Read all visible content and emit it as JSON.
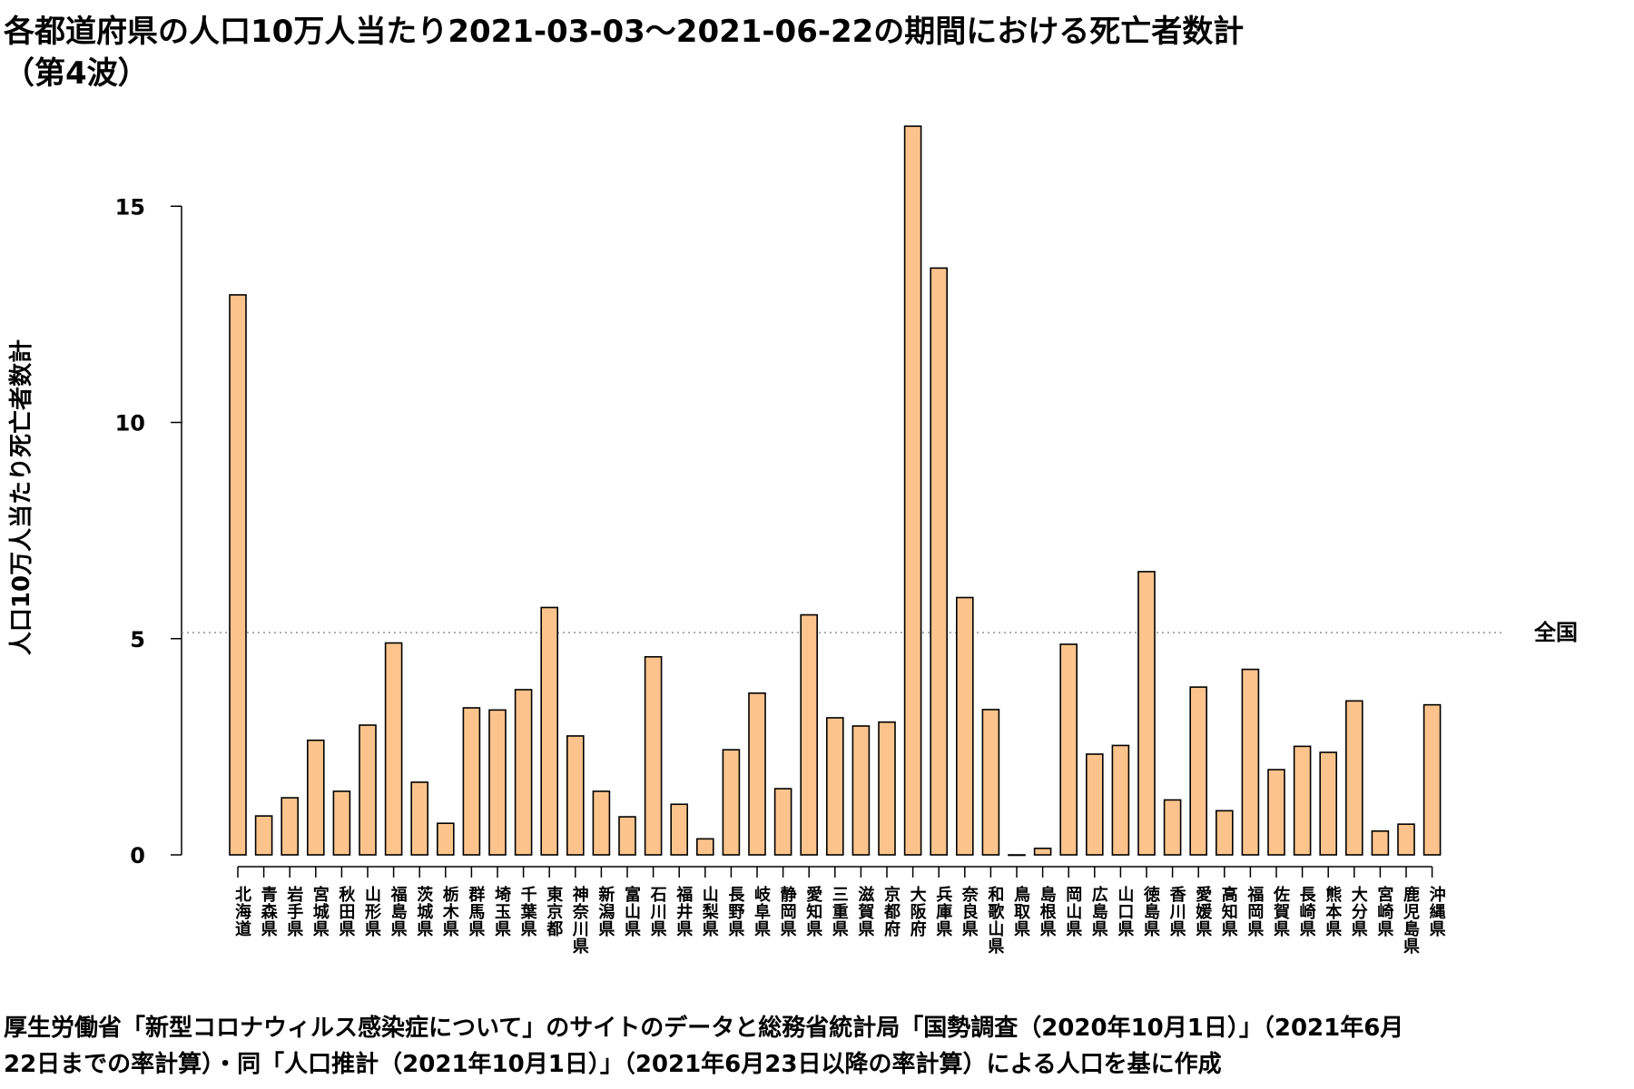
{
  "chart_data": {
    "type": "bar",
    "title": "各都道府県の人口10万人当たり2021-03-03～2021-06-22の期間における死亡者数計",
    "subtitle": "（第4波）",
    "xlabel": "",
    "ylabel": "人口10万人当たり死亡者数計",
    "ylim": [
      0,
      17
    ],
    "yticks": [
      0,
      5,
      10,
      15
    ],
    "grid": false,
    "legend": "none",
    "bar_color": "#fcc48c",
    "categories": [
      "北海道",
      "青森県",
      "岩手県",
      "宮城県",
      "秋田県",
      "山形県",
      "福島県",
      "茨城県",
      "栃木県",
      "群馬県",
      "埼玉県",
      "千葉県",
      "東京都",
      "神奈川県",
      "新潟県",
      "富山県",
      "石川県",
      "福井県",
      "山梨県",
      "長野県",
      "岐阜県",
      "静岡県",
      "愛知県",
      "三重県",
      "滋賀県",
      "京都府",
      "大阪府",
      "兵庫県",
      "奈良県",
      "和歌山県",
      "鳥取県",
      "島根県",
      "岡山県",
      "広島県",
      "山口県",
      "徳島県",
      "香川県",
      "愛媛県",
      "高知県",
      "福岡県",
      "佐賀県",
      "長崎県",
      "熊本県",
      "大分県",
      "宮崎県",
      "鹿児島県",
      "沖縄県"
    ],
    "values": [
      12.95,
      0.9,
      1.32,
      2.65,
      1.47,
      3.0,
      4.9,
      1.68,
      0.73,
      3.4,
      3.35,
      3.82,
      5.72,
      2.75,
      1.47,
      0.88,
      4.58,
      1.17,
      0.37,
      2.43,
      3.74,
      1.53,
      5.55,
      3.17,
      2.98,
      3.07,
      16.85,
      13.57,
      5.95,
      3.36,
      0.0,
      0.15,
      4.87,
      2.33,
      2.53,
      6.55,
      1.27,
      3.88,
      1.02,
      4.29,
      1.97,
      2.51,
      2.37,
      3.56,
      0.55,
      0.71,
      3.47
    ],
    "reference_line": {
      "label": "全国",
      "value": 5.14,
      "style": "dotted"
    },
    "source": "厚生労働省「新型コロナウィルス感染症について」のサイトのデータと総務省統計局「国勢調査（2020年10月1日）」（2021年6月22日までの率計算）・同「人口推計（2021年10月1日）」（2021年6月23日以降の率計算）による人口を基に作成"
  }
}
